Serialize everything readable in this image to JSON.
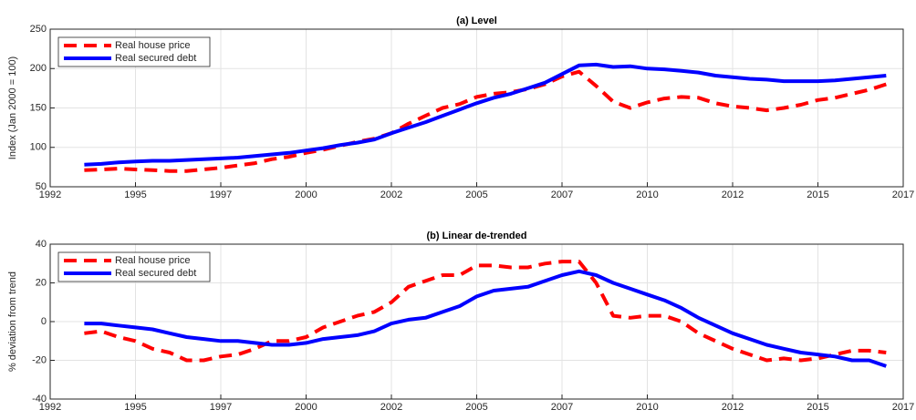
{
  "chart_data": [
    {
      "type": "line",
      "title": "(a) Level",
      "ylabel": "Index (Jan 2000 = 100)",
      "x": [
        1993,
        1993.5,
        1994,
        1994.5,
        1995,
        1995.5,
        1996,
        1996.5,
        1997,
        1997.5,
        1998,
        1998.5,
        1999,
        1999.5,
        2000,
        2000.5,
        2001,
        2001.5,
        2002,
        2002.5,
        2003,
        2003.5,
        2004,
        2004.5,
        2005,
        2005.5,
        2006,
        2006.5,
        2007,
        2007.5,
        2008,
        2008.5,
        2009,
        2009.5,
        2010,
        2010.5,
        2011,
        2011.5,
        2012,
        2012.5,
        2013,
        2013.5,
        2014,
        2014.5,
        2015,
        2015.5,
        2016,
        2016.5
      ],
      "series": [
        {
          "name": "Real house price",
          "color": "#ff0000",
          "line_style": "dashed",
          "values": [
            71,
            72,
            73,
            72,
            71,
            70,
            70,
            72,
            74,
            77,
            80,
            85,
            88,
            93,
            97,
            102,
            107,
            111,
            118,
            130,
            140,
            150,
            155,
            164,
            168,
            170,
            174,
            180,
            190,
            196,
            178,
            158,
            150,
            157,
            162,
            164,
            163,
            156,
            152,
            150,
            147,
            150,
            154,
            160,
            163,
            168,
            173,
            180
          ]
        },
        {
          "name": "Real secured debt",
          "color": "#0000ff",
          "line_style": "solid",
          "values": [
            78,
            79,
            81,
            82,
            83,
            83,
            84,
            85,
            86,
            87,
            89,
            91,
            93,
            96,
            99,
            103,
            106,
            110,
            118,
            125,
            132,
            140,
            148,
            156,
            163,
            168,
            175,
            182,
            193,
            204,
            205,
            202,
            203,
            200,
            199,
            197,
            195,
            191,
            189,
            187,
            186,
            184,
            184,
            184,
            185,
            187,
            189,
            191
          ]
        }
      ],
      "xlim": [
        1992,
        2017
      ],
      "xticks": [
        1992,
        {
          "value": 1994.5,
          "label": "1995"
        },
        1997,
        {
          "value": 1999.5,
          "label": "2000"
        },
        2002,
        {
          "value": 2004.5,
          "label": "2005"
        },
        2007,
        {
          "value": 2009.5,
          "label": "2010"
        },
        2012,
        {
          "value": 2014.5,
          "label": "2015"
        },
        2017
      ],
      "ylim": [
        50,
        250
      ],
      "yticks": [
        50,
        100,
        150,
        200,
        250
      ],
      "grid": true,
      "legend": "upper left"
    },
    {
      "type": "line",
      "title": "(b) Linear de-trended",
      "ylabel": "% deviation from trend",
      "x": [
        1993,
        1993.5,
        1994,
        1994.5,
        1995,
        1995.5,
        1996,
        1996.5,
        1997,
        1997.5,
        1998,
        1998.5,
        1999,
        1999.5,
        2000,
        2000.5,
        2001,
        2001.5,
        2002,
        2002.5,
        2003,
        2003.5,
        2004,
        2004.5,
        2005,
        2005.5,
        2006,
        2006.5,
        2007,
        2007.5,
        2008,
        2008.5,
        2009,
        2009.5,
        2010,
        2010.5,
        2011,
        2011.5,
        2012,
        2012.5,
        2013,
        2013.5,
        2014,
        2014.5,
        2015,
        2015.5,
        2016,
        2016.5
      ],
      "series": [
        {
          "name": "Real house price",
          "color": "#ff0000",
          "line_style": "dashed",
          "values": [
            -6,
            -5,
            -8,
            -10,
            -14,
            -16,
            -20,
            -20,
            -18,
            -17,
            -14,
            -10,
            -10,
            -8,
            -3,
            0,
            3,
            5,
            10,
            18,
            21,
            24,
            24,
            29,
            29,
            28,
            28,
            30,
            31,
            31,
            20,
            3,
            2,
            3,
            3,
            0,
            -6,
            -10,
            -14,
            -17,
            -20,
            -19,
            -20,
            -19,
            -17,
            -15,
            -15,
            -16
          ]
        },
        {
          "name": "Real secured debt",
          "color": "#0000ff",
          "line_style": "solid",
          "values": [
            -1,
            -1,
            -2,
            -3,
            -4,
            -6,
            -8,
            -9,
            -10,
            -10,
            -11,
            -12,
            -12,
            -11,
            -9,
            -8,
            -7,
            -5,
            -1,
            1,
            2,
            5,
            8,
            13,
            16,
            17,
            18,
            21,
            24,
            26,
            24,
            20,
            17,
            14,
            11,
            7,
            2,
            -2,
            -6,
            -9,
            -12,
            -14,
            -16,
            -17,
            -18,
            -20,
            -20,
            -23
          ]
        }
      ],
      "xlim": [
        1992,
        2017
      ],
      "xticks": [
        1992,
        {
          "value": 1994.5,
          "label": "1995"
        },
        1997,
        {
          "value": 1999.5,
          "label": "2000"
        },
        2002,
        {
          "value": 2004.5,
          "label": "2005"
        },
        2007,
        {
          "value": 2009.5,
          "label": "2010"
        },
        2012,
        {
          "value": 2014.5,
          "label": "2015"
        },
        2017
      ],
      "ylim": [
        -40,
        40
      ],
      "yticks": [
        -40,
        -20,
        0,
        20,
        40
      ],
      "grid": true,
      "legend": "upper left"
    }
  ]
}
